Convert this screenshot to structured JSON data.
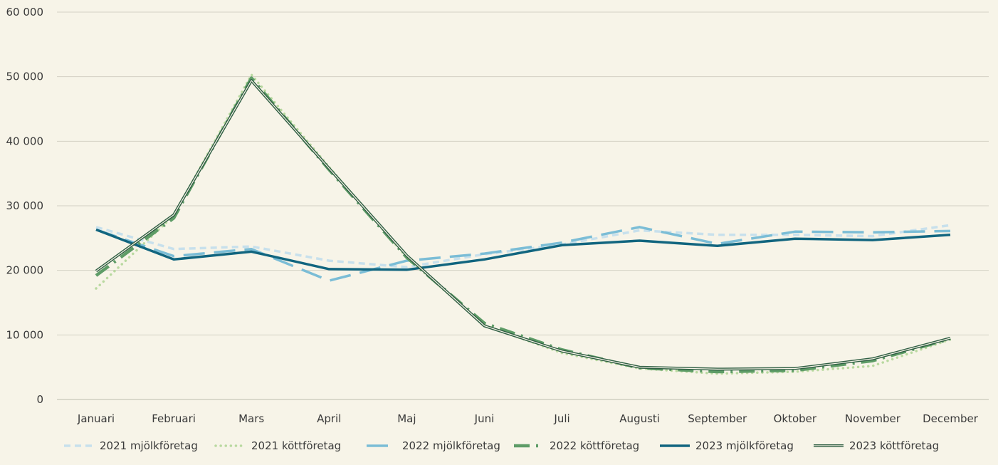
{
  "chart_data": {
    "type": "line",
    "title": "",
    "xlabel": "",
    "ylabel": "",
    "categories": [
      "Januari",
      "Februari",
      "Mars",
      "April",
      "Maj",
      "Juni",
      "Juli",
      "Augusti",
      "September",
      "Oktober",
      "November",
      "December"
    ],
    "y_ticks": [
      "0",
      "10 000",
      "20 000",
      "30 000",
      "40 000",
      "50 000",
      "60 000"
    ],
    "ylim": [
      0,
      60000
    ],
    "grid": "horizontal",
    "legend_position": "bottom",
    "series": [
      {
        "name": "2021 mjölkföretag",
        "color": "#c7e0ec",
        "style": "short-dash",
        "values": [
          26700,
          23300,
          23700,
          21500,
          20500,
          22500,
          24000,
          26200,
          25500,
          25500,
          25300,
          27000
        ]
      },
      {
        "name": "2021 köttföretag",
        "color": "#b9d9a0",
        "style": "dotted",
        "values": [
          17200,
          28500,
          50300,
          36000,
          22000,
          11500,
          7200,
          4800,
          4000,
          4300,
          5200,
          9300
        ]
      },
      {
        "name": "2022 mjölkföretag",
        "color": "#7bbdd6",
        "style": "long-dash",
        "values": [
          26300,
          22200,
          23300,
          18400,
          21500,
          22600,
          24300,
          26700,
          24100,
          26000,
          25900,
          26100
        ]
      },
      {
        "name": "2022 köttföretag",
        "color": "#5e9c67",
        "style": "dash-dot",
        "values": [
          19200,
          28100,
          49800,
          35600,
          22000,
          11800,
          7700,
          4900,
          4300,
          4500,
          6000,
          9400
        ]
      },
      {
        "name": "2023 mjölkföretag",
        "color": "#11657f",
        "style": "solid",
        "values": [
          26300,
          21700,
          22900,
          20200,
          20100,
          21700,
          23900,
          24600,
          23800,
          24900,
          24700,
          25500
        ]
      },
      {
        "name": "2023 köttföretag",
        "color": "#2f5e43",
        "style": "double",
        "values": [
          19900,
          28600,
          49400,
          35800,
          22300,
          11400,
          7500,
          5000,
          4700,
          4800,
          6300,
          9500
        ]
      }
    ]
  }
}
